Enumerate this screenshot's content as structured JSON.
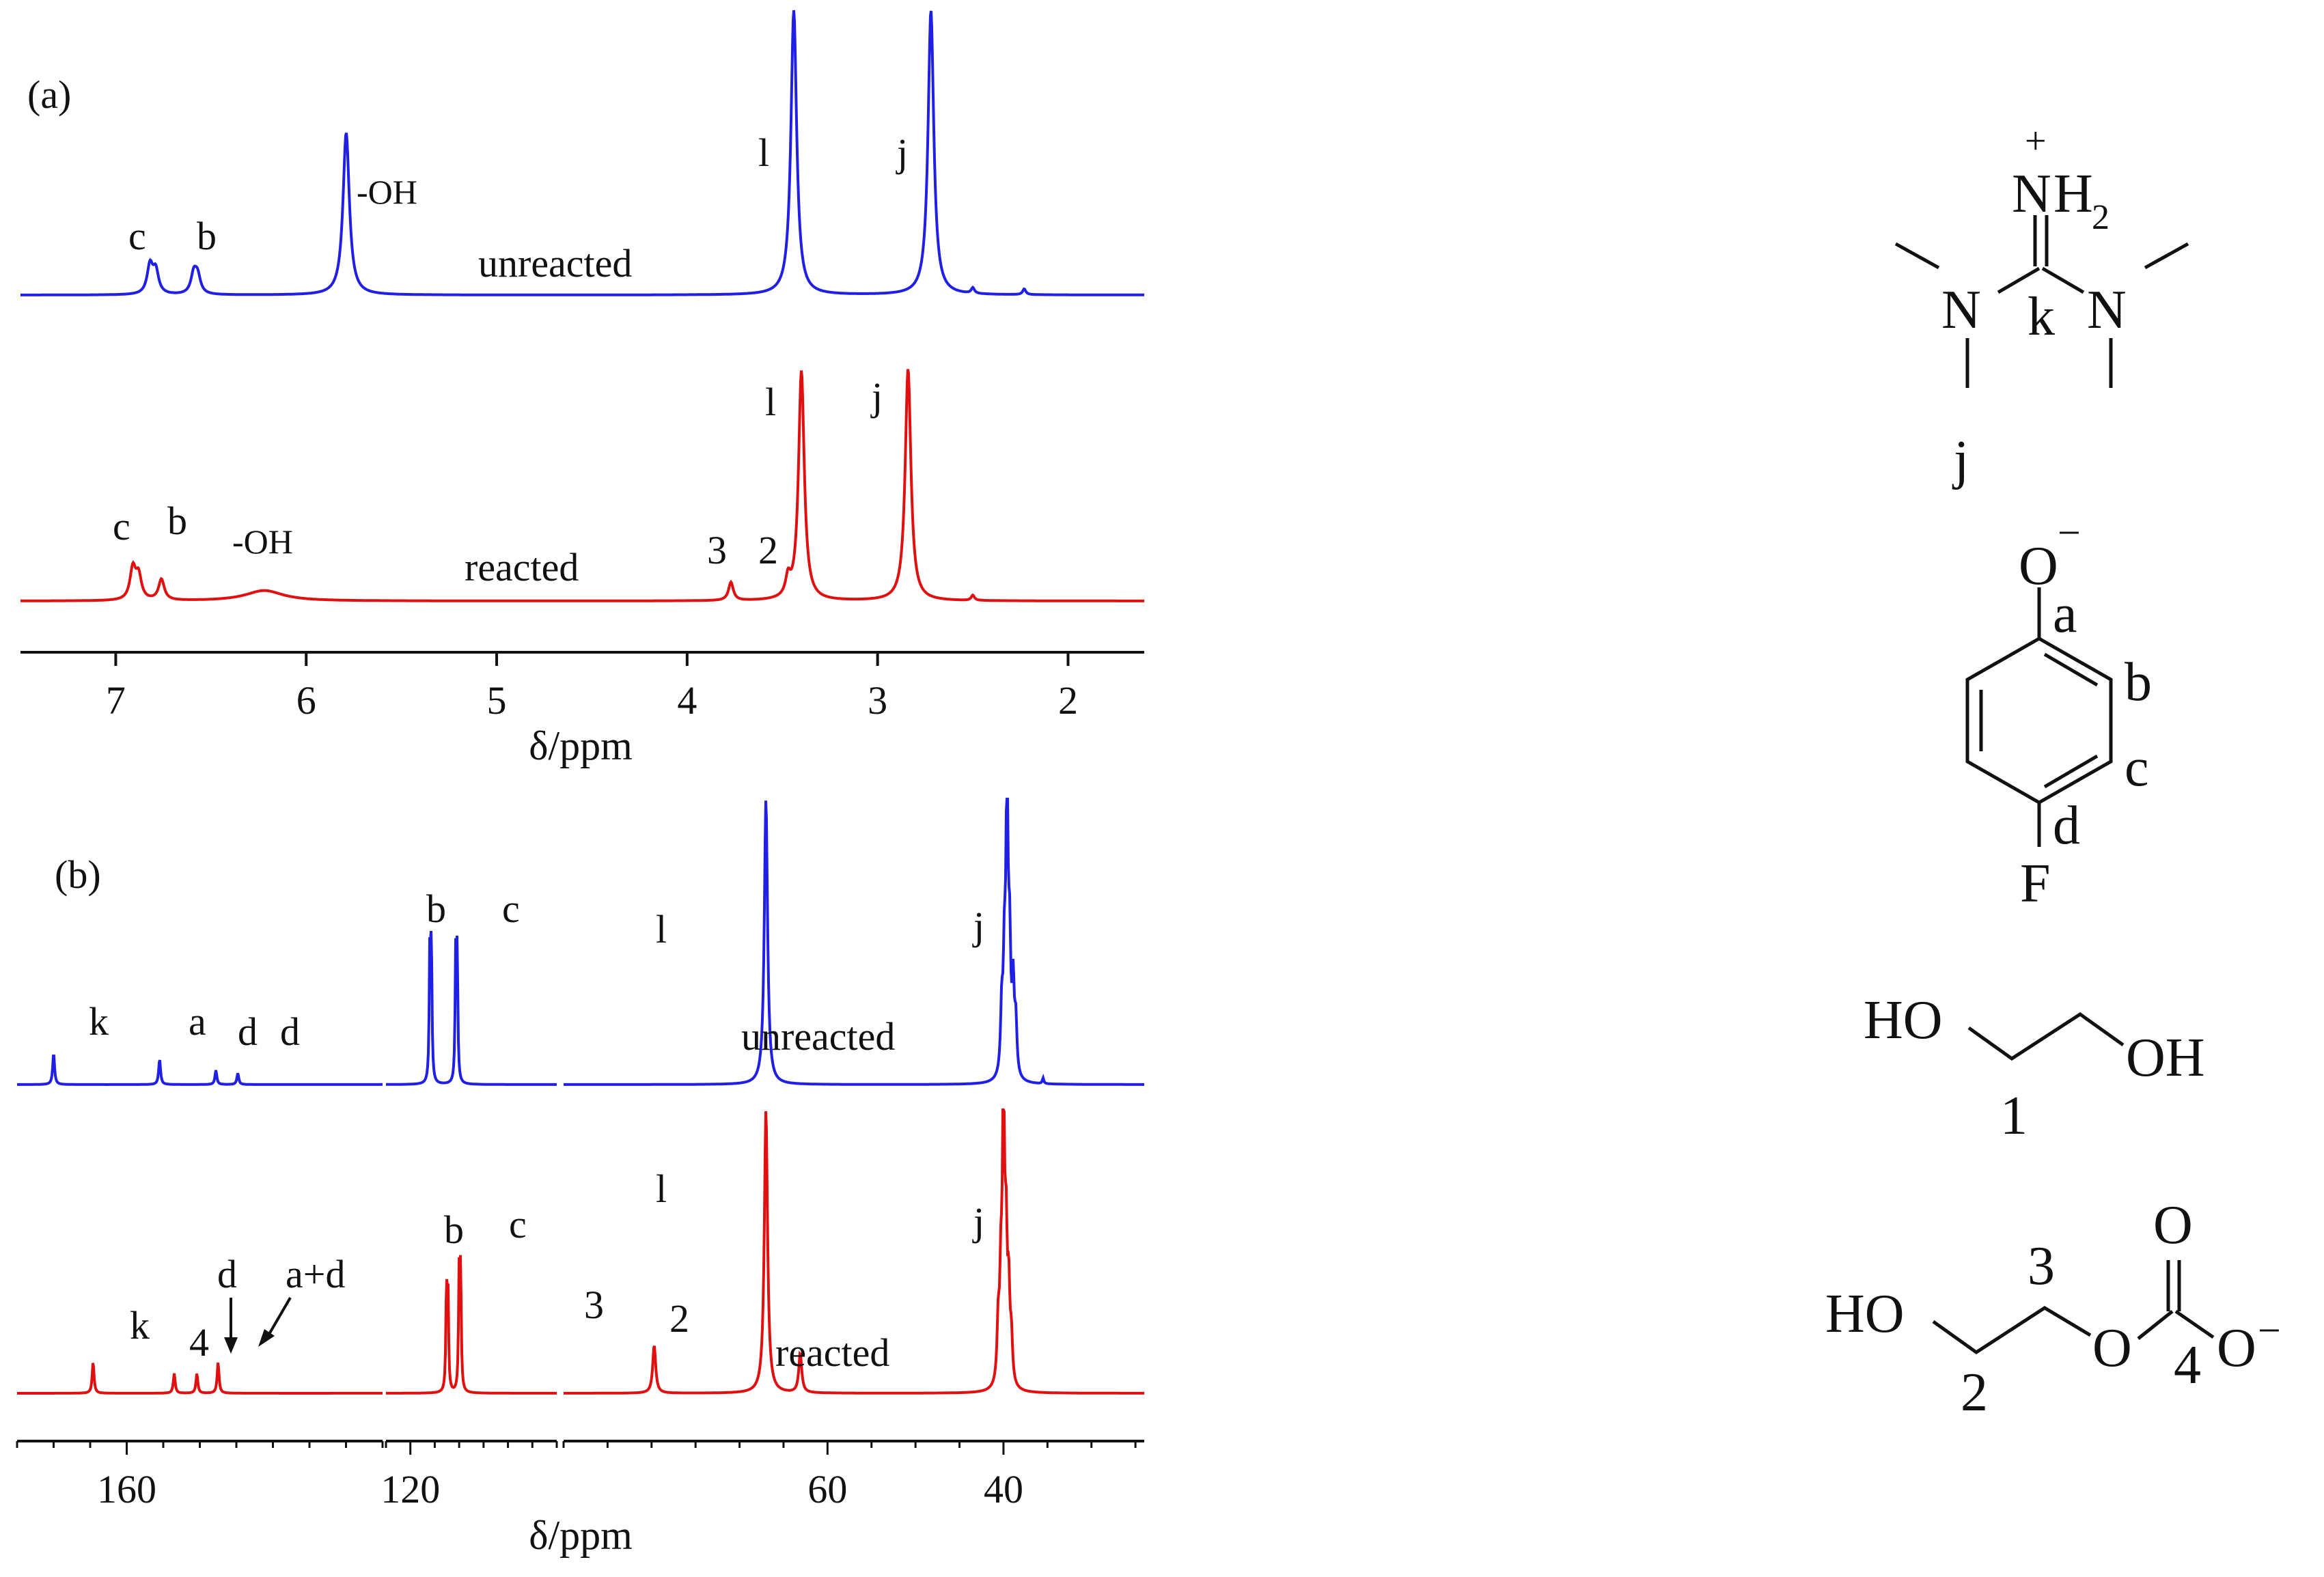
{
  "chart_data": [
    {
      "type": "line",
      "panel": "(a)",
      "title": "",
      "xlabel": "δ/ppm",
      "ylabel": "",
      "xlim": [
        7.5,
        1.6
      ],
      "xticks": [
        7,
        6,
        5,
        4,
        3,
        2
      ],
      "xtick_labels": [
        "7",
        "6",
        "5",
        "4",
        "3",
        "2"
      ],
      "series": [
        {
          "name": "unreacted",
          "label": "unreacted",
          "color": "#1f1fe6",
          "peaks": [
            {
              "x": 6.82,
              "h": 0.1,
              "w": 0.018,
              "label": "c"
            },
            {
              "x": 6.79,
              "h": 0.08,
              "w": 0.018
            },
            {
              "x": 6.59,
              "h": 0.07,
              "w": 0.018,
              "label": "b"
            },
            {
              "x": 6.57,
              "h": 0.06,
              "w": 0.018
            },
            {
              "x": 5.79,
              "h": 0.57,
              "w": 0.02,
              "label": "-OH"
            },
            {
              "x": 3.44,
              "h": 1.0,
              "w": 0.018,
              "label": "l"
            },
            {
              "x": 2.72,
              "h": 1.0,
              "w": 0.018,
              "label": "j"
            },
            {
              "x": 2.5,
              "h": 0.02,
              "w": 0.01
            },
            {
              "x": 2.23,
              "h": 0.02,
              "w": 0.01
            }
          ]
        },
        {
          "name": "reacted",
          "label": "reacted",
          "color": "#e01010",
          "peaks": [
            {
              "x": 6.91,
              "h": 0.12,
              "w": 0.018,
              "label": "c"
            },
            {
              "x": 6.88,
              "h": 0.09,
              "w": 0.018
            },
            {
              "x": 6.76,
              "h": 0.08,
              "w": 0.018,
              "label": "b"
            },
            {
              "x": 6.22,
              "h": 0.04,
              "w": 0.12,
              "label": "-OH"
            },
            {
              "x": 3.77,
              "h": 0.07,
              "w": 0.015,
              "label": "3"
            },
            {
              "x": 3.47,
              "h": 0.07,
              "w": 0.015,
              "label": "2"
            },
            {
              "x": 3.4,
              "h": 0.88,
              "w": 0.018,
              "label": "l"
            },
            {
              "x": 2.84,
              "h": 0.89,
              "w": 0.018,
              "label": "j"
            },
            {
              "x": 2.5,
              "h": 0.02,
              "w": 0.01
            }
          ]
        }
      ]
    },
    {
      "type": "line",
      "panel": "(b)",
      "title": "",
      "xlabel": "δ/ppm",
      "ylabel": "",
      "axis_breaks": true,
      "segments": [
        {
          "xlim": [
            175,
            125
          ],
          "xticks": [
            160
          ],
          "xtick_labels": [
            "160"
          ]
        },
        {
          "xlim": [
            125,
            90
          ],
          "xticks": [
            120
          ],
          "xtick_labels": [
            "120"
          ]
        },
        {
          "xlim": [
            90,
            24
          ],
          "xticks": [
            60,
            40
          ],
          "xtick_labels": [
            "60",
            "40"
          ]
        }
      ],
      "series": [
        {
          "name": "unreacted",
          "label": "unreacted",
          "color": "#1f1fe6",
          "peaks": [
            {
              "x": 170.0,
              "h": 0.11,
              "w": 0.15,
              "label": "k"
            },
            {
              "x": 155.5,
              "h": 0.09,
              "w": 0.15,
              "label": "a"
            },
            {
              "x": 147.8,
              "h": 0.05,
              "w": 0.15,
              "label": "d"
            },
            {
              "x": 144.8,
              "h": 0.04,
              "w": 0.15,
              "label": "d"
            },
            {
              "x": 116.0,
              "h": 0.47,
              "w": 0.15,
              "label": "b"
            },
            {
              "x": 115.7,
              "h": 0.47,
              "w": 0.15
            },
            {
              "x": 110.7,
              "h": 0.44,
              "w": 0.15,
              "label": "c"
            },
            {
              "x": 110.4,
              "h": 0.44,
              "w": 0.15
            },
            {
              "x": 67.0,
              "h": 1.0,
              "w": 0.22,
              "label": "l"
            },
            {
              "x": 39.6,
              "h": 1.0,
              "w": 0.15,
              "label": "j"
            },
            {
              "x": 39.3,
              "h": 0.4,
              "w": 0.15
            },
            {
              "x": 39.9,
              "h": 0.35,
              "w": 0.15
            },
            {
              "x": 38.9,
              "h": 0.3,
              "w": 0.15
            },
            {
              "x": 40.2,
              "h": 0.22,
              "w": 0.15
            },
            {
              "x": 38.6,
              "h": 0.18,
              "w": 0.15
            },
            {
              "x": 35.5,
              "h": 0.02,
              "w": 0.1
            }
          ]
        },
        {
          "name": "reacted",
          "label": "reacted",
          "color": "#e01010",
          "peaks": [
            {
              "x": 164.6,
              "h": 0.11,
              "w": 0.15,
              "label": "k"
            },
            {
              "x": 153.5,
              "h": 0.07,
              "w": 0.15,
              "label": "4"
            },
            {
              "x": 150.4,
              "h": 0.07,
              "w": 0.15,
              "label": "d"
            },
            {
              "x": 147.5,
              "h": 0.11,
              "w": 0.15,
              "label": "a+d"
            },
            {
              "x": 112.6,
              "h": 0.35,
              "w": 0.15,
              "label": "b"
            },
            {
              "x": 112.3,
              "h": 0.35,
              "w": 0.15
            },
            {
              "x": 110.0,
              "h": 0.41,
              "w": 0.15,
              "label": "c"
            },
            {
              "x": 109.7,
              "h": 0.41,
              "w": 0.15
            },
            {
              "x": 79.7,
              "h": 0.17,
              "w": 0.2,
              "label": "3"
            },
            {
              "x": 67.0,
              "h": 1.0,
              "w": 0.22,
              "label": "l"
            },
            {
              "x": 63.1,
              "h": 0.14,
              "w": 0.2,
              "label": "2"
            },
            {
              "x": 40.0,
              "h": 1.0,
              "w": 0.15,
              "label": "j"
            },
            {
              "x": 39.7,
              "h": 0.45,
              "w": 0.15
            },
            {
              "x": 40.3,
              "h": 0.32,
              "w": 0.15
            },
            {
              "x": 39.4,
              "h": 0.3,
              "w": 0.15
            },
            {
              "x": 40.6,
              "h": 0.2,
              "w": 0.15
            },
            {
              "x": 39.1,
              "h": 0.15,
              "w": 0.15
            }
          ]
        }
      ]
    }
  ],
  "structures": {
    "guanidinium": {
      "n_plus": "N",
      "h2": "H",
      "sub2": "2",
      "plus": "+",
      "n_left": "N",
      "n_right": "N",
      "k": "k",
      "j": "j"
    },
    "phenolate": {
      "o": "O",
      "minus": "−",
      "a": "a",
      "b": "b",
      "c": "c",
      "d": "d",
      "f": "F"
    },
    "ethylene_glycol": {
      "ho": "HO",
      "oh": "OH",
      "label": "1"
    },
    "carbonate": {
      "ho": "HO",
      "o_top": "O",
      "o_ester": "O",
      "o_minus": "O",
      "minus": "−",
      "n3": "3",
      "n2": "2",
      "n4": "4"
    }
  }
}
